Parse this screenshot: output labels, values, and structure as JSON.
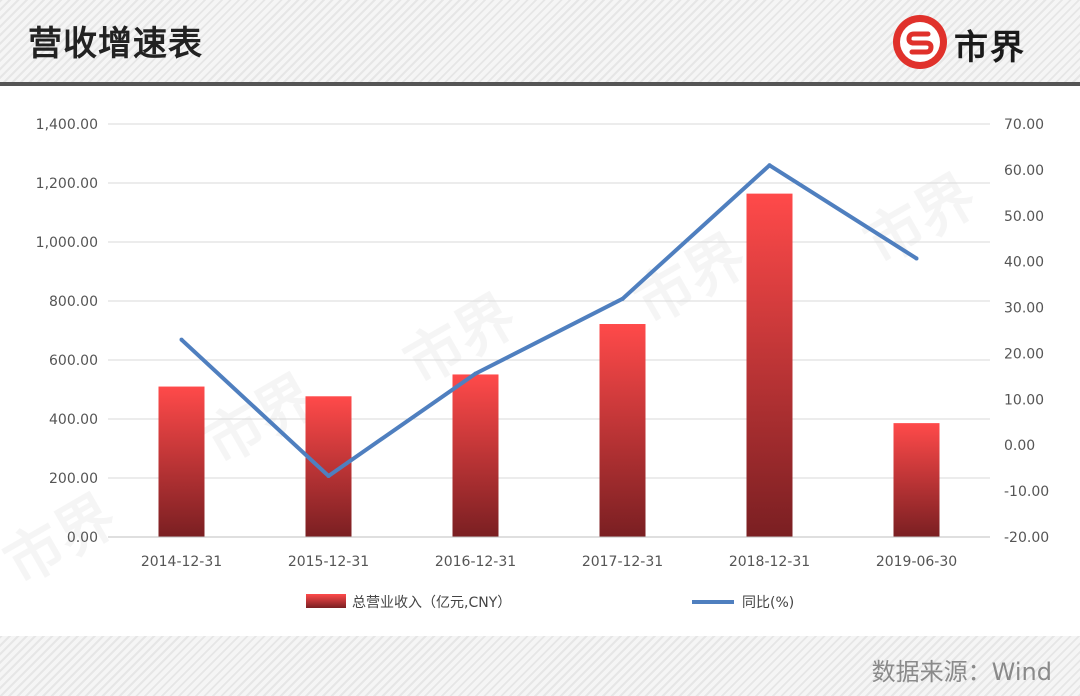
{
  "header": {
    "title": "营收增速表",
    "logo_text": "市界"
  },
  "footer": {
    "source": "数据来源：Wind"
  },
  "watermark": "市界",
  "colors": {
    "bar_top": "#ff4a4a",
    "bar_bottom": "#7a1f22",
    "line": "#4f7fbf",
    "grid": "#d9d9d9",
    "logo_red": "#e0312b"
  },
  "chart_data": {
    "type": "bar",
    "categories": [
      "2014-12-31",
      "2015-12-31",
      "2016-12-31",
      "2017-12-31",
      "2018-12-31",
      "2019-06-30"
    ],
    "series": [
      {
        "name": "总营业收入（亿元,CNY）",
        "type": "bar",
        "axis": "left",
        "values": [
          510,
          477,
          551,
          722,
          1164,
          386
        ]
      },
      {
        "name": "同比(%)",
        "type": "line",
        "axis": "right",
        "values": [
          23.0,
          -6.7,
          15.6,
          31.9,
          61.0,
          40.7
        ]
      }
    ],
    "left_axis": {
      "ylim": [
        0,
        1400
      ],
      "ticks": [
        "0.00",
        "200.00",
        "400.00",
        "600.00",
        "800.00",
        "1,000.00",
        "1,200.00",
        "1,400.00"
      ]
    },
    "right_axis": {
      "ylim": [
        -20,
        70
      ],
      "ticks": [
        "-20.00",
        "-10.00",
        "0.00",
        "10.00",
        "20.00",
        "30.00",
        "40.00",
        "50.00",
        "60.00",
        "70.00"
      ]
    },
    "grid": true,
    "legend_position": "bottom"
  }
}
